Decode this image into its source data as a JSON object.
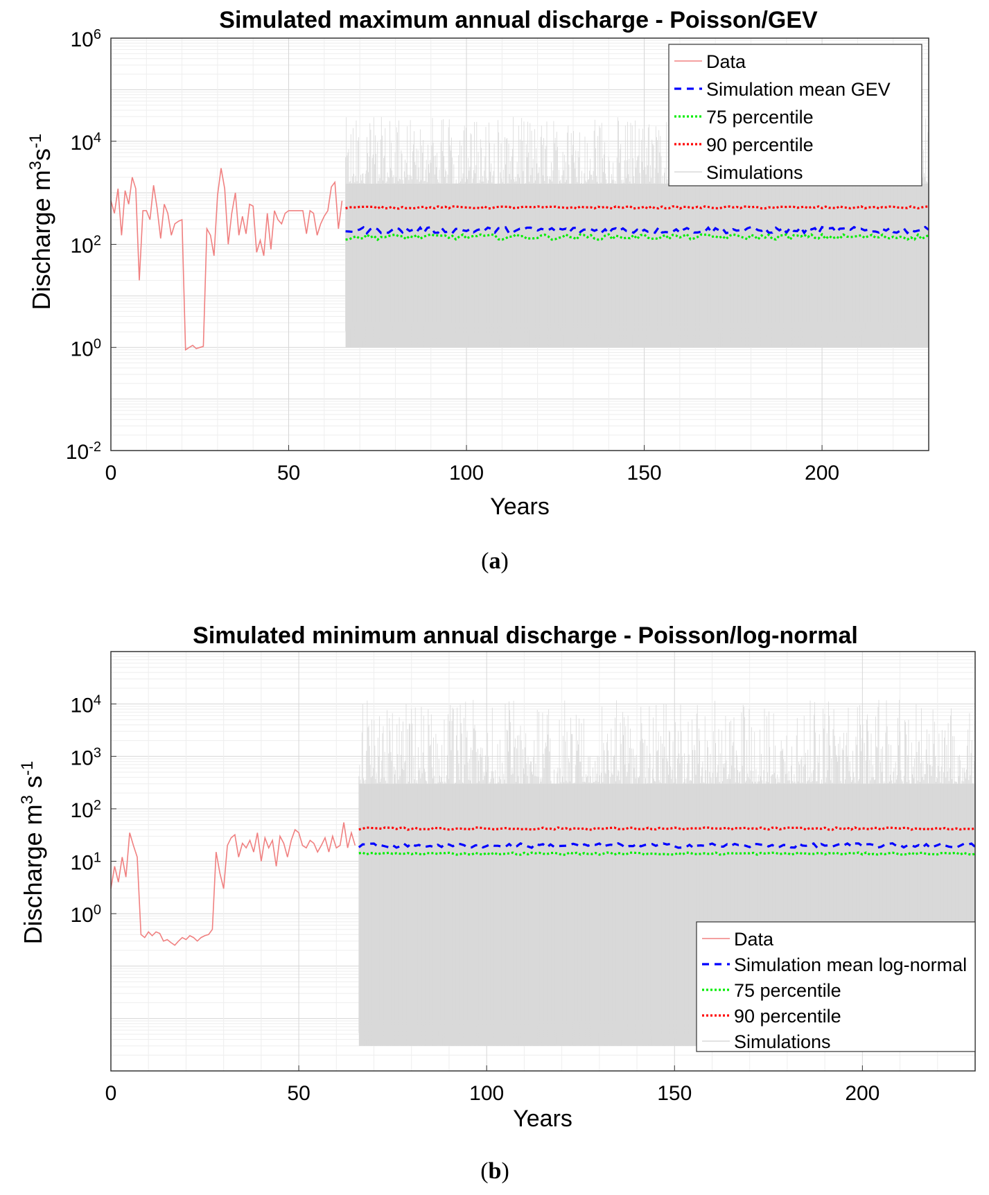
{
  "chart_data": [
    {
      "panel": "a",
      "caption": {
        "open": "(",
        "letter": "a",
        "close": ")"
      },
      "type": "line",
      "title": "Simulated maximum annual discharge - Poisson/GEV",
      "xlabel": "Years",
      "ylabel": {
        "main": "Discharge m",
        "sup1": "3",
        "mid": "s",
        "sup2": "-1"
      },
      "xlim": [
        0,
        230
      ],
      "ylim_log10": [
        -2,
        6
      ],
      "yscale": "log",
      "xticks": [
        0,
        50,
        100,
        150,
        200
      ],
      "yticks": [
        {
          "base": "10",
          "exp": "-2",
          "value": 0.01
        },
        {
          "base": "10",
          "exp": "0",
          "value": 1
        },
        {
          "base": "10",
          "exp": "2",
          "value": 100
        },
        {
          "base": "10",
          "exp": "4",
          "value": 10000
        },
        {
          "base": "10",
          "exp": "6",
          "value": 1000000
        }
      ],
      "grid": true,
      "legend_position": "top-right",
      "legend": [
        "Data",
        "Simulation mean GEV",
        "75 percentile",
        "90 percentile",
        "Simulations"
      ],
      "series": [
        {
          "name": "Data",
          "color": "#f08080",
          "style": "solid",
          "x": [
            0,
            1,
            2,
            3,
            4,
            5,
            6,
            7,
            8,
            9,
            10,
            11,
            12,
            13,
            14,
            15,
            16,
            17,
            18,
            19,
            20,
            21,
            22,
            23,
            24,
            25,
            26,
            27,
            28,
            29,
            30,
            31,
            32,
            33,
            34,
            35,
            36,
            37,
            38,
            39,
            40,
            41,
            42,
            43,
            44,
            45,
            46,
            47,
            48,
            49,
            50,
            51,
            52,
            53,
            54,
            55,
            56,
            57,
            58,
            59,
            60,
            61,
            62,
            63,
            64,
            65
          ],
          "values": [
            700,
            400,
            1200,
            150,
            1100,
            600,
            2000,
            1200,
            20,
            450,
            450,
            300,
            1400,
            500,
            130,
            600,
            400,
            150,
            250,
            280,
            300,
            0.9,
            1,
            1.1,
            0.95,
            1,
            1.05,
            200,
            150,
            60,
            900,
            3000,
            1200,
            100,
            400,
            1000,
            150,
            350,
            160,
            600,
            550,
            70,
            120,
            60,
            400,
            80,
            450,
            300,
            250,
            400,
            450,
            450,
            450,
            450,
            450,
            160,
            450,
            400,
            150,
            250,
            350,
            450,
            1300,
            1600,
            200,
            700
          ]
        },
        {
          "name": "Simulation mean GEV",
          "color": "#0000ff",
          "style": "dashed",
          "x_range": [
            66,
            230
          ],
          "level": 190,
          "fluctuation": 0.14
        },
        {
          "name": "75 percentile",
          "color": "#00ee00",
          "style": "dotted",
          "x_range": [
            66,
            230
          ],
          "level": 140,
          "fluctuation": 0.12
        },
        {
          "name": "90 percentile",
          "color": "#ff0000",
          "style": "dotted",
          "x_range": [
            66,
            230
          ],
          "level": 520,
          "fluctuation": 0.05
        },
        {
          "name": "Simulations",
          "color": "#d9d9d9",
          "style": "band",
          "x_range": [
            66,
            230
          ],
          "band_min": 1,
          "band_typical_max": 1500,
          "band_peak_max": 30000
        }
      ]
    },
    {
      "panel": "b",
      "caption": {
        "open": "(",
        "letter": "b",
        "close": ")"
      },
      "type": "line",
      "title": "Simulated minimum annual discharge - Poisson/log-normal",
      "xlabel": "Years",
      "ylabel": {
        "main": "Discharge m",
        "sup1": "3",
        "mid": " s",
        "sup2": "-1"
      },
      "xlim": [
        0,
        230
      ],
      "ylim_log10": [
        -3,
        5
      ],
      "yscale": "log",
      "xticks": [
        0,
        50,
        100,
        150,
        200
      ],
      "yticks": [
        {
          "base": "10",
          "exp": "0",
          "value": 1
        },
        {
          "base": "10",
          "exp": "1",
          "value": 10
        },
        {
          "base": "10",
          "exp": "2",
          "value": 100
        },
        {
          "base": "10",
          "exp": "3",
          "value": 1000
        },
        {
          "base": "10",
          "exp": "4",
          "value": 10000
        }
      ],
      "grid": true,
      "legend_position": "bottom-right",
      "legend": [
        "Data",
        "Simulation mean log-normal",
        "75 percentile",
        "90 percentile",
        "Simulations"
      ],
      "series": [
        {
          "name": "Data",
          "color": "#f08080",
          "style": "solid",
          "x": [
            0,
            1,
            2,
            3,
            4,
            5,
            6,
            7,
            8,
            9,
            10,
            11,
            12,
            13,
            14,
            15,
            16,
            17,
            18,
            19,
            20,
            21,
            22,
            23,
            24,
            25,
            26,
            27,
            28,
            29,
            30,
            31,
            32,
            33,
            34,
            35,
            36,
            37,
            38,
            39,
            40,
            41,
            42,
            43,
            44,
            45,
            46,
            47,
            48,
            49,
            50,
            51,
            52,
            53,
            54,
            55,
            56,
            57,
            58,
            59,
            60,
            61,
            62,
            63,
            64,
            65
          ],
          "values": [
            3,
            8,
            4,
            12,
            5,
            35,
            20,
            12,
            0.4,
            0.35,
            0.45,
            0.38,
            0.45,
            0.42,
            0.3,
            0.32,
            0.28,
            0.25,
            0.3,
            0.35,
            0.32,
            0.38,
            0.35,
            0.3,
            0.35,
            0.38,
            0.4,
            0.5,
            15,
            6,
            3,
            20,
            28,
            32,
            12,
            22,
            18,
            25,
            15,
            35,
            10,
            28,
            18,
            25,
            8,
            30,
            22,
            12,
            25,
            40,
            35,
            20,
            18,
            25,
            22,
            15,
            20,
            28,
            15,
            30,
            18,
            20,
            55,
            18,
            35,
            20
          ]
        },
        {
          "name": "Simulation mean log-normal",
          "color": "#0000ff",
          "style": "dashed",
          "x_range": [
            66,
            230
          ],
          "level": 20,
          "fluctuation": 0.1
        },
        {
          "name": "75 percentile",
          "color": "#00ee00",
          "style": "dotted",
          "x_range": [
            66,
            230
          ],
          "level": 14,
          "fluctuation": 0.05
        },
        {
          "name": "90 percentile",
          "color": "#ff0000",
          "style": "dotted",
          "x_range": [
            66,
            230
          ],
          "level": 42,
          "fluctuation": 0.05
        },
        {
          "name": "Simulations",
          "color": "#d9d9d9",
          "style": "band",
          "x_range": [
            66,
            230
          ],
          "band_min": 0.003,
          "band_typical_max": 300,
          "band_peak_max": 12000
        }
      ]
    }
  ]
}
